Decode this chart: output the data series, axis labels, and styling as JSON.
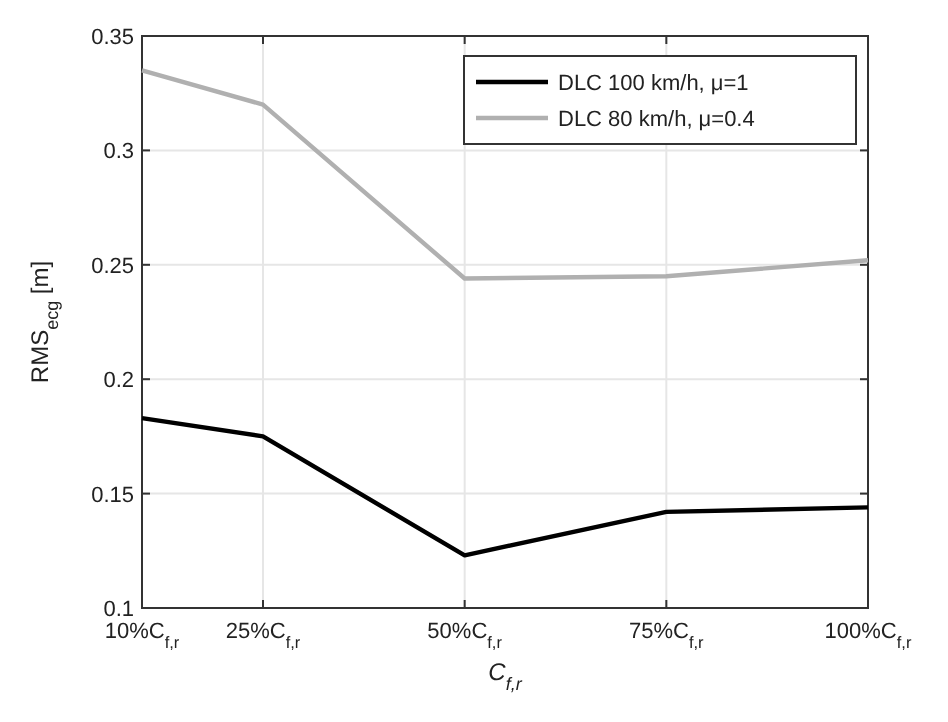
{
  "chart_data": {
    "type": "line",
    "xlabel": "C$_{f,r}$",
    "ylabel": "RMS$_{ecg}$ [m]",
    "x": [
      10,
      25,
      50,
      75,
      100
    ],
    "xlim": [
      10,
      100
    ],
    "xticks": [
      {
        "value": 10,
        "label": "10%C$_{f,r}$"
      },
      {
        "value": 25,
        "label": "25%C$_{f,r}$"
      },
      {
        "value": 50,
        "label": "50%C$_{f,r}$"
      },
      {
        "value": 75,
        "label": "75%C$_{f,r}$"
      },
      {
        "value": 100,
        "label": "100%C$_{f,r}$"
      }
    ],
    "ylim": [
      0.1,
      0.35
    ],
    "yticks": [
      0.1,
      0.15,
      0.2,
      0.25,
      0.3,
      0.35
    ],
    "grid": true,
    "legend": "top right",
    "line_style": "solid",
    "series": [
      {
        "name": "DLC 100 km/h, μ=1",
        "color": "#000000",
        "values": [
          0.183,
          0.175,
          0.123,
          0.142,
          0.144
        ]
      },
      {
        "name": "DLC 80 km/h, μ=0.4",
        "color": "#b0b0b0",
        "values": [
          0.335,
          0.32,
          0.244,
          0.245,
          0.252
        ]
      }
    ]
  }
}
